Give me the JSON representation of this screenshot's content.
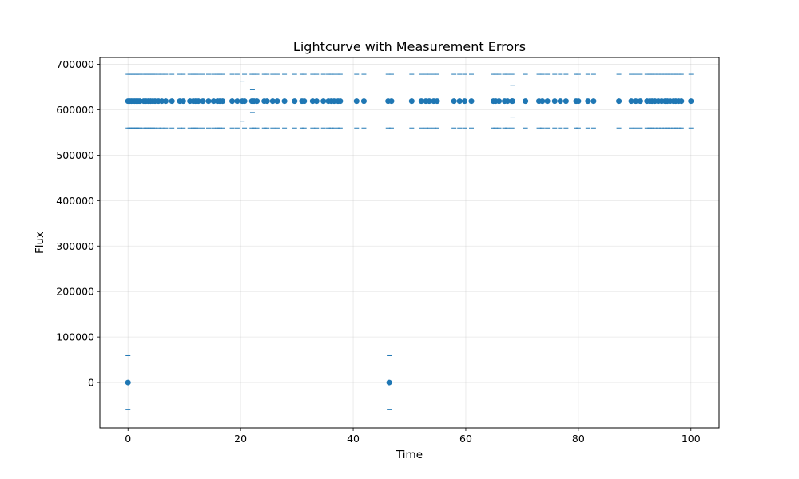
{
  "chart_data": {
    "type": "scatter",
    "title": "Lightcurve with Measurement Errors",
    "xlabel": "Time",
    "ylabel": "Flux",
    "xlim": [
      -5,
      105
    ],
    "ylim": [
      -100000,
      715000
    ],
    "xticks": [
      0,
      20,
      40,
      60,
      80,
      100
    ],
    "yticks": [
      0,
      100000,
      200000,
      300000,
      400000,
      500000,
      600000,
      700000
    ],
    "ytick_labels": [
      "0",
      "100000",
      "200000",
      "300000",
      "400000",
      "500000",
      "600000",
      "700000"
    ],
    "xtick_labels": [
      "0",
      "20",
      "40",
      "60",
      "80",
      "100"
    ],
    "grid": true,
    "marker_color": "#1f77b4",
    "error_bar_style": "caps-only",
    "series": [
      {
        "error": 59000,
        "points": [
          [
            0.0,
            0
          ],
          [
            46.4,
            0
          ],
          [
            0.0,
            619000
          ],
          [
            0.3,
            619000
          ],
          [
            0.6,
            619000
          ],
          [
            0.9,
            619000
          ],
          [
            1.2,
            619000
          ],
          [
            1.5,
            619000
          ],
          [
            1.8,
            619000
          ],
          [
            2.1,
            619000
          ],
          [
            2.8,
            619000
          ],
          [
            3.2,
            619000
          ],
          [
            3.6,
            619000
          ],
          [
            4.0,
            619000
          ],
          [
            4.4,
            619000
          ],
          [
            4.8,
            619000
          ],
          [
            5.4,
            619000
          ],
          [
            6.0,
            619000
          ],
          [
            6.7,
            619000
          ],
          [
            7.8,
            619000
          ],
          [
            9.2,
            619000
          ],
          [
            9.8,
            619000
          ],
          [
            11.0,
            619000
          ],
          [
            11.6,
            619000
          ],
          [
            12.0,
            619000
          ],
          [
            12.5,
            619000
          ],
          [
            13.3,
            619000
          ],
          [
            14.3,
            619000
          ],
          [
            15.2,
            619000
          ],
          [
            15.9,
            619000
          ],
          [
            16.3,
            619000
          ],
          [
            16.8,
            619000
          ],
          [
            18.5,
            619000
          ],
          [
            19.4,
            619000
          ],
          [
            20.7,
            619000
          ],
          [
            22.0,
            619000
          ],
          [
            22.4,
            619000
          ],
          [
            22.9,
            619000
          ],
          [
            24.2,
            619000
          ],
          [
            24.7,
            619000
          ],
          [
            25.7,
            619000
          ],
          [
            26.5,
            619000
          ],
          [
            27.8,
            619000
          ],
          [
            29.6,
            619000
          ],
          [
            30.9,
            619000
          ],
          [
            31.3,
            619000
          ],
          [
            32.8,
            619000
          ],
          [
            33.5,
            619000
          ],
          [
            34.7,
            619000
          ],
          [
            35.6,
            619000
          ],
          [
            36.1,
            619000
          ],
          [
            36.6,
            619000
          ],
          [
            37.3,
            619000
          ],
          [
            37.7,
            619000
          ],
          [
            40.6,
            619000
          ],
          [
            41.9,
            619000
          ],
          [
            46.2,
            619000
          ],
          [
            46.8,
            619000
          ],
          [
            50.4,
            619000
          ],
          [
            52.1,
            619000
          ],
          [
            52.9,
            619000
          ],
          [
            53.5,
            619000
          ],
          [
            54.3,
            619000
          ],
          [
            54.9,
            619000
          ],
          [
            57.9,
            619000
          ],
          [
            58.9,
            619000
          ],
          [
            59.8,
            619000
          ],
          [
            61.0,
            619000
          ],
          [
            64.9,
            619000
          ],
          [
            65.3,
            619000
          ],
          [
            65.9,
            619000
          ],
          [
            66.9,
            619000
          ],
          [
            67.4,
            619000
          ],
          [
            68.2,
            619000
          ],
          [
            70.6,
            619000
          ],
          [
            73.0,
            619000
          ],
          [
            73.6,
            619000
          ],
          [
            74.5,
            619000
          ],
          [
            75.8,
            619000
          ],
          [
            76.8,
            619000
          ],
          [
            77.8,
            619000
          ],
          [
            79.6,
            619000
          ],
          [
            80.0,
            619000
          ],
          [
            81.7,
            619000
          ],
          [
            82.7,
            619000
          ],
          [
            87.2,
            619000
          ],
          [
            89.4,
            619000
          ],
          [
            90.2,
            619000
          ],
          [
            91.0,
            619000
          ],
          [
            92.2,
            619000
          ],
          [
            92.7,
            619000
          ],
          [
            93.1,
            619000
          ],
          [
            93.6,
            619000
          ],
          [
            94.2,
            619000
          ],
          [
            94.8,
            619000
          ],
          [
            95.4,
            619000
          ],
          [
            95.8,
            619000
          ],
          [
            96.3,
            619000
          ],
          [
            96.9,
            619000
          ],
          [
            97.3,
            619000
          ],
          [
            97.8,
            619000
          ],
          [
            98.3,
            619000
          ],
          [
            100.0,
            619000
          ]
        ]
      },
      {
        "error": 44000,
        "points": [
          [
            20.3,
            619000
          ]
        ]
      },
      {
        "error": 25000,
        "points": [
          [
            22.1,
            619000
          ]
        ]
      },
      {
        "error": 35000,
        "points": [
          [
            68.3,
            619000
          ]
        ]
      }
    ]
  }
}
